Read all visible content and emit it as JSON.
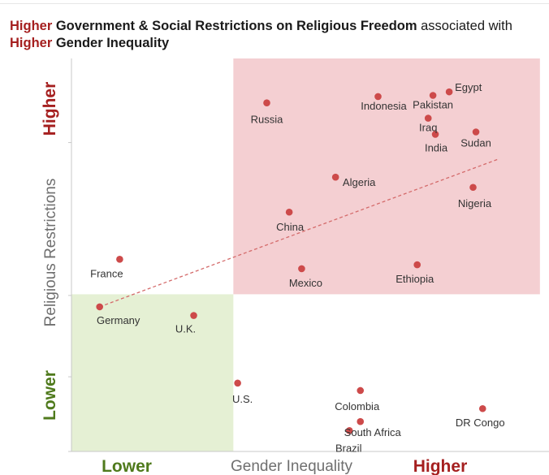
{
  "title": {
    "part1_hl": "Higher",
    "part1_bold": " Government & Social Restrictions on Religious Freedom",
    "part1_rest": " associated with",
    "part2_hl": "Higher",
    "part2_bold": " Gender Inequality"
  },
  "colors": {
    "accent_red": "#a51f1f",
    "accent_green": "#4f7a1c",
    "point": "#cd4a4a",
    "high_zone": "#f4cfd2",
    "low_zone": "#e5f0d4",
    "axis_text": "#6f6f6f"
  },
  "chart_data": {
    "type": "scatter",
    "xlabel": "Gender Inequality",
    "ylabel": "Religious Restrictions",
    "x_low_label": "Lower",
    "x_high_label": "Higher",
    "y_low_label": "Lower",
    "y_high_label": "Higher",
    "xlim": [
      0,
      10
    ],
    "ylim": [
      0,
      10
    ],
    "grid": false,
    "points": [
      {
        "label": "Egypt",
        "x": 7.91,
        "y": 9.15
      },
      {
        "label": "Pakistan",
        "x": 7.57,
        "y": 9.06
      },
      {
        "label": "Indonesia",
        "x": 6.42,
        "y": 9.03
      },
      {
        "label": "Russia",
        "x": 4.09,
        "y": 8.87
      },
      {
        "label": "Iraq",
        "x": 7.47,
        "y": 8.48
      },
      {
        "label": "India",
        "x": 7.62,
        "y": 8.07
      },
      {
        "label": "Sudan",
        "x": 8.47,
        "y": 8.13
      },
      {
        "label": "Algeria",
        "x": 5.53,
        "y": 6.98
      },
      {
        "label": "Nigeria",
        "x": 8.41,
        "y": 6.72
      },
      {
        "label": "China",
        "x": 4.56,
        "y": 6.09
      },
      {
        "label": "Mexico",
        "x": 4.82,
        "y": 4.65
      },
      {
        "label": "Ethiopia",
        "x": 7.24,
        "y": 4.75
      },
      {
        "label": "France",
        "x": 1.01,
        "y": 4.89
      },
      {
        "label": "Germany",
        "x": 0.59,
        "y": 3.68
      },
      {
        "label": "U.K.",
        "x": 2.56,
        "y": 3.46
      },
      {
        "label": "U.S.",
        "x": 3.48,
        "y": 1.74
      },
      {
        "label": "Colombia",
        "x": 6.05,
        "y": 1.55
      },
      {
        "label": "South Africa",
        "x": 6.05,
        "y": 0.76
      },
      {
        "label": "Brazil",
        "x": 5.82,
        "y": 0.53
      },
      {
        "label": "DR Congo",
        "x": 8.61,
        "y": 1.09
      }
    ],
    "trendline": {
      "style": "dashed",
      "from": {
        "x": 0.59,
        "y": 3.68
      },
      "to": {
        "x": 8.92,
        "y": 7.43
      }
    },
    "regions": [
      {
        "name": "higher-quadrant",
        "x_range": [
          3.39,
          9.81
        ],
        "y_range": [
          4.0,
          10.0
        ]
      },
      {
        "name": "lower-quadrant",
        "x_range": [
          0,
          3.39
        ],
        "y_range": [
          0,
          4.0
        ]
      }
    ]
  }
}
